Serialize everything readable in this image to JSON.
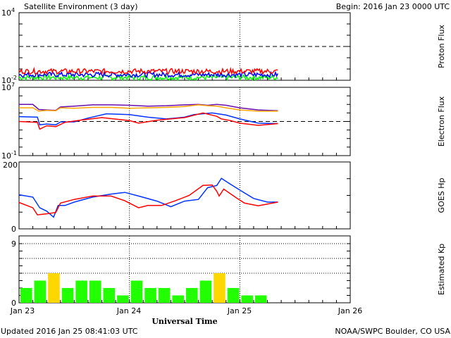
{
  "header": {
    "title": "Satellite Environment (3 day)",
    "begin": "Begin:  2016 Jan 23 0000 UTC"
  },
  "footer": {
    "updated": "Updated 2016 Jan 25 08:41:03 UTC",
    "credit": "NOAA/SWPC Boulder, CO USA"
  },
  "chart_data": [
    {
      "type": "line",
      "ylabel": "Proton Flux",
      "yscale": "log",
      "ylim_exp": [
        -2,
        4
      ],
      "ytick_labels": {
        "top": {
          "base": "10",
          "exp": "4"
        },
        "bottom": {
          "base": "10",
          "exp": "-2"
        }
      },
      "threshold_exp": 1,
      "series": [
        {
          "name": "red",
          "color": "#ff0000",
          "mean_log": -1.2
        },
        {
          "name": "blue",
          "color": "#0000ff",
          "mean_log": -1.5
        },
        {
          "name": "green",
          "color": "#00ff00",
          "mean_log": -1.75
        }
      ],
      "end_hour": 56.3
    },
    {
      "type": "line",
      "ylabel": "Electron Flux",
      "yscale": "log",
      "ylim_exp": [
        -1,
        7
      ],
      "ytick_labels": {
        "top": {
          "base": "10",
          "exp": "7"
        },
        "bottom": {
          "base": "10",
          "exp": "-1"
        }
      },
      "threshold_exp": 3,
      "series": [
        {
          "name": "purple",
          "color": "#6a0dad",
          "hours": [
            0,
            3,
            4.3,
            6,
            8,
            9,
            12,
            16,
            20,
            24,
            28,
            32,
            36,
            39,
            41,
            43,
            45,
            48,
            52,
            56.3
          ],
          "log": [
            5.0,
            5.0,
            4.4,
            4.35,
            4.3,
            4.7,
            4.8,
            4.95,
            4.95,
            4.9,
            4.8,
            4.85,
            4.95,
            5.0,
            4.9,
            5.0,
            4.9,
            4.6,
            4.35,
            4.25
          ]
        },
        {
          "name": "orange",
          "color": "#ffa500",
          "hours": [
            0,
            3,
            4.3,
            6,
            8,
            9,
            12,
            16,
            20,
            24,
            28,
            32,
            36,
            39,
            41,
            43,
            45,
            48,
            52,
            56.3
          ],
          "log": [
            4.6,
            4.6,
            4.2,
            4.3,
            4.25,
            4.6,
            4.55,
            4.65,
            4.65,
            4.55,
            4.6,
            4.65,
            4.75,
            4.95,
            4.85,
            4.8,
            4.6,
            4.35,
            4.2,
            4.2
          ]
        },
        {
          "name": "blue",
          "color": "#0033ff",
          "hours": [
            0,
            4,
            4.5,
            6,
            8,
            9,
            12,
            15,
            19,
            24,
            28,
            32,
            36,
            38,
            42,
            45,
            48,
            52,
            56.3
          ],
          "log": [
            3.57,
            3.5,
            2.6,
            2.7,
            2.6,
            2.95,
            2.95,
            3.4,
            3.9,
            3.8,
            3.5,
            3.3,
            3.5,
            3.8,
            4.0,
            3.75,
            3.3,
            2.8,
            2.75
          ]
        },
        {
          "name": "red",
          "color": "#ff0000",
          "hours": [
            0,
            4,
            4.5,
            6,
            8,
            10,
            14,
            18,
            24,
            26,
            30,
            36,
            40,
            43,
            44,
            46,
            48,
            52,
            56.3
          ],
          "log": [
            3.0,
            2.9,
            2.1,
            2.5,
            2.4,
            2.9,
            3.2,
            3.45,
            3.1,
            2.8,
            3.15,
            3.45,
            4.0,
            3.6,
            3.3,
            3.1,
            2.8,
            2.55,
            2.75
          ]
        }
      ]
    },
    {
      "type": "line",
      "ylabel": "GOES Hp",
      "ylim": [
        0,
        200
      ],
      "ytick_labels": [
        "0",
        "200"
      ],
      "series": [
        {
          "name": "blue",
          "color": "#0033ff",
          "hours": [
            0,
            3,
            4.5,
            6,
            7.5,
            8.5,
            10,
            12,
            16,
            20,
            23,
            26,
            30,
            33,
            36,
            39,
            41,
            43,
            44,
            46,
            48,
            51,
            54,
            56.3
          ],
          "values": [
            102,
            95,
            63,
            53,
            35,
            70,
            70,
            80,
            95,
            104,
            109,
            98,
            83,
            66,
            83,
            88,
            123,
            130,
            151,
            133,
            116,
            91,
            80,
            80
          ]
        },
        {
          "name": "red",
          "color": "#ff0000",
          "hours": [
            0,
            3,
            4,
            6,
            8,
            9,
            12,
            16,
            20,
            23,
            26,
            28,
            31,
            34,
            37,
            40,
            42,
            43,
            43.5,
            44.5,
            47,
            49,
            52,
            56.3
          ],
          "values": [
            79,
            63,
            42,
            45,
            49,
            77,
            88,
            98,
            98,
            84,
            63,
            70,
            70,
            84,
            100,
            130,
            131,
            112,
            98,
            119,
            95,
            77,
            69,
            80
          ]
        }
      ]
    },
    {
      "type": "bar",
      "ylabel": "Estimated Kp",
      "ylim": [
        0,
        9
      ],
      "ytick_labels": [
        "0",
        "9"
      ],
      "bin_hours": 3,
      "values": [
        2,
        3,
        4,
        2,
        3,
        3,
        2,
        1,
        3,
        2,
        2,
        1,
        2,
        3,
        4,
        2,
        1,
        1
      ],
      "colors": {
        "quiet": "#22ff00",
        "active": "#ffd700"
      }
    }
  ],
  "xaxis": {
    "tick_labels": [
      "Jan 23",
      "Jan 24",
      "Jan 25",
      "Jan 26"
    ],
    "label": "Universal Time",
    "range_hours": [
      0,
      72
    ]
  }
}
